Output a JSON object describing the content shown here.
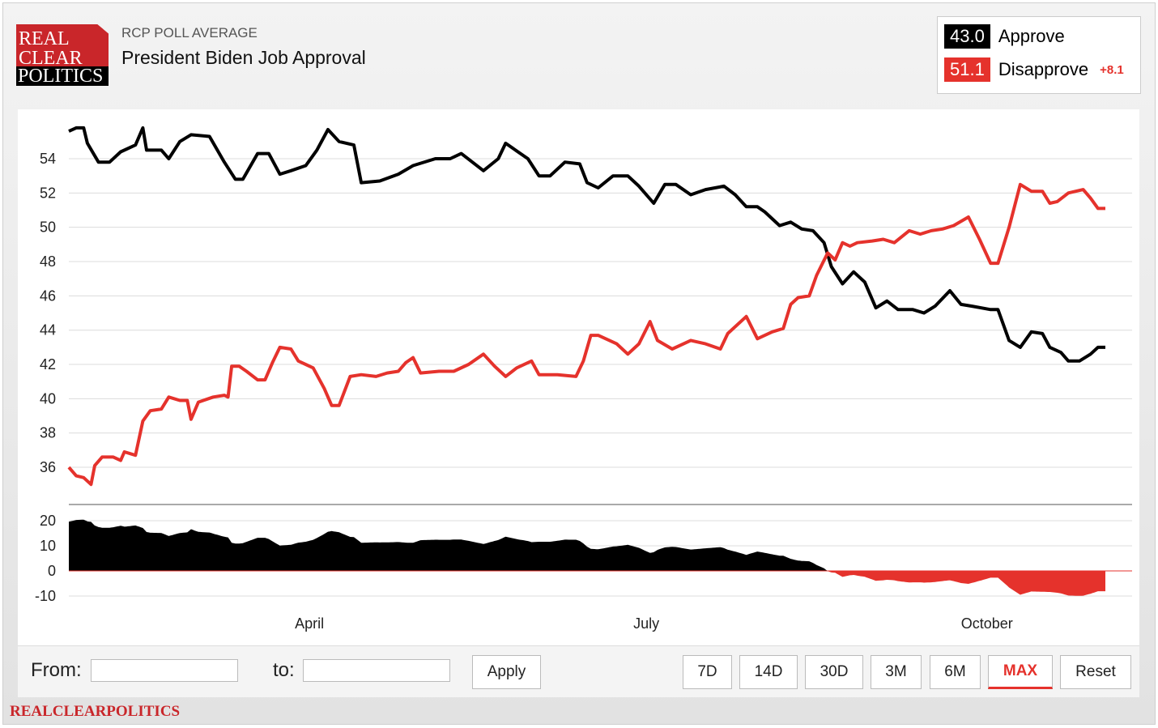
{
  "header": {
    "logo": [
      "REAL",
      "CLEAR",
      "POLITICS"
    ],
    "subtitle": "RCP POLL AVERAGE",
    "title": "President Biden Job Approval"
  },
  "legend": {
    "approve_value": "43.0",
    "approve_label": "Approve",
    "disapprove_value": "51.1",
    "disapprove_label": "Disapprove",
    "spread": "+8.1"
  },
  "colors": {
    "approve": "#000000",
    "disapprove": "#e5322c"
  },
  "controls": {
    "from_label": "From:",
    "from_value": "",
    "to_label": "to:",
    "to_value": "",
    "apply": "Apply",
    "ranges": [
      "7D",
      "14D",
      "30D",
      "3M",
      "6M",
      "MAX"
    ],
    "active_range": "MAX",
    "reset": "Reset"
  },
  "footer": "REALCLEARPOLITICS",
  "chart_data": {
    "type": "line",
    "title": "President Biden Job Approval",
    "x_unit": "days since start",
    "xlim": [
      0,
      280
    ],
    "x_ticks": [
      {
        "x": 65,
        "label": "April"
      },
      {
        "x": 156,
        "label": "July"
      },
      {
        "x": 248,
        "label": "October"
      }
    ],
    "ylim": [
      34.5,
      56.5
    ],
    "y_ticks": [
      54,
      52,
      50,
      48,
      46,
      44,
      42,
      40,
      38,
      36
    ],
    "spread_ylim": [
      -14,
      21
    ],
    "spread_ticks": [
      20,
      10,
      0,
      -10
    ],
    "grid": true,
    "series": [
      {
        "name": "Approve",
        "points": [
          [
            0,
            55.6
          ],
          [
            2,
            55.8
          ],
          [
            4,
            55.8
          ],
          [
            5,
            54.9
          ],
          [
            8,
            53.8
          ],
          [
            11,
            53.8
          ],
          [
            14,
            54.4
          ],
          [
            18,
            54.8
          ],
          [
            20,
            55.8
          ],
          [
            21,
            54.5
          ],
          [
            25,
            54.5
          ],
          [
            27,
            54
          ],
          [
            30,
            55
          ],
          [
            33,
            55.4
          ],
          [
            38,
            55.3
          ],
          [
            42,
            53.8
          ],
          [
            45,
            52.8
          ],
          [
            47,
            52.8
          ],
          [
            51,
            54.3
          ],
          [
            54,
            54.3
          ],
          [
            57,
            53.1
          ],
          [
            60,
            53.3
          ],
          [
            64,
            53.6
          ],
          [
            67,
            54.5
          ],
          [
            70,
            55.7
          ],
          [
            73,
            55
          ],
          [
            77,
            54.8
          ],
          [
            79,
            52.6
          ],
          [
            84,
            52.7
          ],
          [
            89,
            53.1
          ],
          [
            93,
            53.6
          ],
          [
            99,
            54
          ],
          [
            103,
            54
          ],
          [
            106,
            54.3
          ],
          [
            112,
            53.3
          ],
          [
            116,
            54
          ],
          [
            118,
            54.9
          ],
          [
            124,
            54
          ],
          [
            127,
            53
          ],
          [
            130,
            53
          ],
          [
            134,
            53.8
          ],
          [
            138,
            53.7
          ],
          [
            140,
            52.6
          ],
          [
            143,
            52.3
          ],
          [
            147,
            53
          ],
          [
            151,
            53
          ],
          [
            154,
            52.4
          ],
          [
            158,
            51.4
          ],
          [
            161,
            52.5
          ],
          [
            164,
            52.5
          ],
          [
            168,
            51.9
          ],
          [
            172,
            52.2
          ],
          [
            177,
            52.4
          ],
          [
            180,
            51.9
          ],
          [
            183,
            51.2
          ],
          [
            186,
            51.2
          ],
          [
            188,
            50.9
          ],
          [
            192,
            50.1
          ],
          [
            195,
            50.3
          ],
          [
            198,
            49.9
          ],
          [
            201,
            49.8
          ],
          [
            204,
            49.1
          ],
          [
            206,
            47.7
          ],
          [
            209,
            46.7
          ],
          [
            212,
            47.4
          ],
          [
            215,
            46.8
          ],
          [
            218,
            45.3
          ],
          [
            221,
            45.7
          ],
          [
            224,
            45.2
          ],
          [
            228,
            45.2
          ],
          [
            231,
            45.0
          ],
          [
            234,
            45.4
          ],
          [
            238,
            46.3
          ],
          [
            241,
            45.5
          ],
          [
            244,
            45.4
          ],
          [
            249,
            45.2
          ],
          [
            251,
            45.2
          ],
          [
            254,
            43.4
          ],
          [
            257,
            43
          ],
          [
            260,
            43.9
          ],
          [
            263,
            43.8
          ],
          [
            265,
            43
          ],
          [
            268,
            42.7
          ],
          [
            270,
            42.2
          ],
          [
            273,
            42.2
          ],
          [
            276,
            42.6
          ],
          [
            278,
            43
          ],
          [
            280,
            43
          ]
        ]
      },
      {
        "name": "Disapprove",
        "points": [
          [
            0,
            36
          ],
          [
            2,
            35.5
          ],
          [
            4,
            35.4
          ],
          [
            6,
            35
          ],
          [
            7,
            36.1
          ],
          [
            9,
            36.6
          ],
          [
            12,
            36.6
          ],
          [
            14,
            36.4
          ],
          [
            15,
            36.9
          ],
          [
            18,
            36.7
          ],
          [
            20,
            38.7
          ],
          [
            22,
            39.3
          ],
          [
            25,
            39.4
          ],
          [
            27,
            40.1
          ],
          [
            30,
            39.9
          ],
          [
            32,
            39.9
          ],
          [
            33,
            38.8
          ],
          [
            35,
            39.8
          ],
          [
            39,
            40.1
          ],
          [
            42,
            40.2
          ],
          [
            43,
            40.1
          ],
          [
            44,
            41.9
          ],
          [
            46,
            41.9
          ],
          [
            48,
            41.6
          ],
          [
            51,
            41.1
          ],
          [
            53,
            41.1
          ],
          [
            55,
            42.1
          ],
          [
            57,
            43
          ],
          [
            60,
            42.9
          ],
          [
            62,
            42.2
          ],
          [
            66,
            41.8
          ],
          [
            69,
            40.6
          ],
          [
            71,
            39.6
          ],
          [
            73,
            39.6
          ],
          [
            76,
            41.3
          ],
          [
            79,
            41.4
          ],
          [
            83,
            41.3
          ],
          [
            86,
            41.5
          ],
          [
            89,
            41.6
          ],
          [
            91,
            42.1
          ],
          [
            93,
            42.4
          ],
          [
            95,
            41.5
          ],
          [
            100,
            41.6
          ],
          [
            104,
            41.6
          ],
          [
            108,
            42
          ],
          [
            112,
            42.6
          ],
          [
            115,
            41.9
          ],
          [
            118,
            41.3
          ],
          [
            121,
            41.8
          ],
          [
            125,
            42.2
          ],
          [
            127,
            41.4
          ],
          [
            132,
            41.4
          ],
          [
            137,
            41.3
          ],
          [
            139,
            42.2
          ],
          [
            141,
            43.7
          ],
          [
            143,
            43.7
          ],
          [
            148,
            43.2
          ],
          [
            151,
            42.6
          ],
          [
            154,
            43.2
          ],
          [
            157,
            44.5
          ],
          [
            159,
            43.4
          ],
          [
            163,
            42.9
          ],
          [
            168,
            43.4
          ],
          [
            172,
            43.2
          ],
          [
            176,
            42.9
          ],
          [
            178,
            43.8
          ],
          [
            183,
            44.8
          ],
          [
            186,
            43.5
          ],
          [
            190,
            43.9
          ],
          [
            193,
            44.1
          ],
          [
            195,
            45.5
          ],
          [
            197,
            45.9
          ],
          [
            200,
            46
          ],
          [
            202,
            47.2
          ],
          [
            205,
            48.5
          ],
          [
            207,
            48.1
          ],
          [
            209,
            49.1
          ],
          [
            211,
            48.9
          ],
          [
            213,
            49.1
          ],
          [
            217,
            49.2
          ],
          [
            220,
            49.3
          ],
          [
            223,
            49.1
          ],
          [
            227,
            49.8
          ],
          [
            230,
            49.6
          ],
          [
            233,
            49.8
          ],
          [
            236,
            49.9
          ],
          [
            239,
            50.1
          ],
          [
            243,
            50.6
          ],
          [
            246,
            49.3
          ],
          [
            249,
            47.9
          ],
          [
            251,
            47.9
          ],
          [
            254,
            50
          ],
          [
            257,
            52.5
          ],
          [
            260,
            52.1
          ],
          [
            263,
            52.1
          ],
          [
            265,
            51.4
          ],
          [
            267,
            51.5
          ],
          [
            270,
            52
          ],
          [
            274,
            52.2
          ],
          [
            276,
            51.7
          ],
          [
            278,
            51.1
          ],
          [
            280,
            51.1
          ]
        ]
      }
    ],
    "spread_series": "Approve minus Disapprove"
  }
}
